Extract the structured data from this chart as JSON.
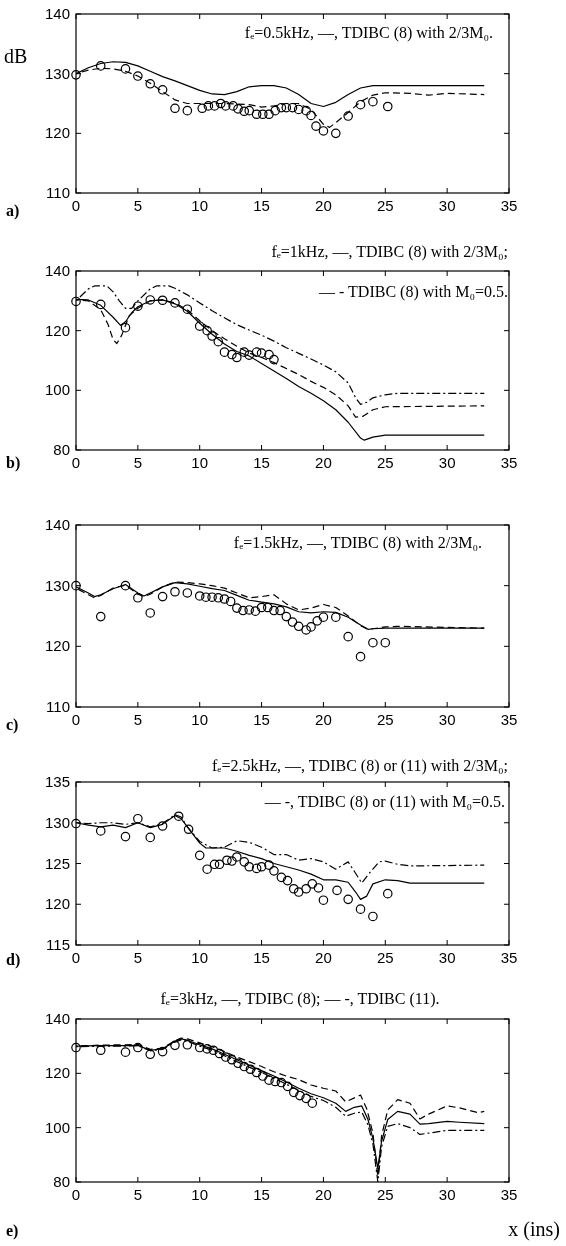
{
  "chart_data": [
    {
      "type": "line",
      "title": "fₑ=0.5kHz, —, TDIBC (8) with 2/3M₀.",
      "ylabel": "dB",
      "annotations": [
        "a)"
      ],
      "xlim": [
        0,
        35
      ],
      "xticks": [
        0,
        5,
        10,
        15,
        20,
        25,
        30,
        35
      ],
      "ylim": [
        110,
        140
      ],
      "yticks": [
        110,
        120,
        130,
        140
      ],
      "series": [
        {
          "type": "line",
          "line_style": "solid",
          "color": "#000000",
          "x": [
            0,
            1,
            2,
            3,
            4,
            5,
            6,
            7,
            8,
            9,
            10,
            11,
            12,
            13,
            14,
            15,
            16,
            17,
            18,
            19,
            20,
            21,
            22,
            23,
            24,
            25,
            33
          ],
          "values": [
            130,
            131,
            131.7,
            132,
            131.9,
            131.3,
            130.4,
            129.5,
            128.8,
            128,
            127.2,
            126.6,
            126.5,
            127,
            127.8,
            128,
            128,
            127.6,
            126.5,
            125,
            124.5,
            125.2,
            126.5,
            127.6,
            128,
            128,
            128
          ]
        },
        {
          "type": "line",
          "line_style": "dashed",
          "color": "#000000",
          "x": [
            0,
            1,
            2,
            3,
            4,
            5,
            6,
            7,
            8,
            9,
            10,
            12,
            14,
            15,
            16,
            17,
            18,
            19,
            20,
            20.5,
            21,
            22,
            23,
            24,
            25,
            27,
            28.5,
            30,
            33
          ],
          "values": [
            130,
            130.6,
            130.9,
            130.8,
            130.4,
            129.6,
            128.4,
            127,
            125.6,
            125,
            125,
            125,
            124.8,
            124.4,
            124.6,
            125,
            125,
            124,
            121.5,
            121,
            121.8,
            123.5,
            125.3,
            126.4,
            126.8,
            126.7,
            126.4,
            126.7,
            126.5
          ]
        },
        {
          "type": "scatter",
          "marker": "circle",
          "color": "#000000",
          "x": [
            0,
            2,
            4,
            5,
            6,
            7,
            8,
            9,
            10.2,
            10.7,
            11.2,
            11.7,
            12.1,
            12.7,
            13.1,
            13.6,
            14,
            14.6,
            15.1,
            15.6,
            16.1,
            16.6,
            17,
            17.5,
            18,
            18.6,
            19,
            19.4,
            20,
            21,
            22,
            23,
            24,
            25.2
          ],
          "values": [
            129.8,
            131.3,
            130.8,
            129.6,
            128.3,
            127.3,
            124.2,
            123.8,
            124.2,
            124.6,
            124.6,
            125,
            124.6,
            124.6,
            124.1,
            123.7,
            123.8,
            123.2,
            123.2,
            123.2,
            123.8,
            124.3,
            124.3,
            124.3,
            124,
            123.8,
            123,
            121.2,
            120.4,
            120,
            122.9,
            124.8,
            125.3,
            124.5
          ]
        }
      ]
    },
    {
      "type": "line",
      "title": "fₑ=1kHz, —, TDIBC (8) with 2/3M₀;",
      "annotations": [
        "— - TDIBC (8) with M₀=0.5.",
        "b)"
      ],
      "xlim": [
        0,
        35
      ],
      "xticks": [
        0,
        5,
        10,
        15,
        20,
        25,
        30,
        35
      ],
      "ylim": [
        80,
        140
      ],
      "yticks": [
        80,
        100,
        120,
        140
      ],
      "series": [
        {
          "type": "line",
          "line_style": "solid",
          "color": "#000000",
          "x": [
            0,
            1,
            2,
            3,
            3.6,
            4,
            4.5,
            5,
            6,
            7,
            8,
            9,
            10,
            11,
            12,
            13,
            14,
            15,
            16,
            17,
            18,
            19,
            20,
            21,
            22,
            23,
            23.3,
            24,
            25,
            33
          ],
          "values": [
            130.5,
            130.3,
            128.5,
            124.5,
            121.8,
            123,
            126,
            128,
            130,
            130.3,
            129,
            126.5,
            122.5,
            118.8,
            115.5,
            113,
            111.5,
            109,
            106.5,
            104,
            101.3,
            99,
            96.5,
            93.5,
            89.3,
            84,
            83.3,
            84.3,
            85,
            85
          ]
        },
        {
          "type": "line",
          "line_style": "dashed",
          "color": "#000000",
          "x": [
            0,
            1,
            2,
            2.6,
            3,
            3.3,
            3.7,
            4.3,
            5,
            6,
            7,
            8,
            9,
            10,
            11,
            12,
            13,
            14,
            15,
            16,
            17,
            18,
            19,
            20,
            21,
            22,
            22.6,
            23.2,
            24,
            25,
            33
          ],
          "values": [
            130.3,
            130,
            127,
            122,
            117,
            115.7,
            118.5,
            125,
            127.5,
            130,
            130.3,
            129.3,
            127,
            123.3,
            120,
            117.3,
            114.8,
            112.5,
            111,
            109.3,
            107.3,
            105.3,
            103,
            101,
            98.5,
            94.8,
            91,
            91.3,
            93.5,
            94.5,
            94.8
          ]
        },
        {
          "type": "line",
          "line_style": "dashdot",
          "color": "#000000",
          "x": [
            0,
            1,
            1.5,
            2.5,
            3,
            3.5,
            4,
            4.5,
            5,
            6,
            6.5,
            7.5,
            8,
            9,
            10,
            11,
            12,
            13,
            14,
            15,
            16,
            17,
            18,
            19,
            20,
            21,
            22,
            22.6,
            23,
            23.5,
            24,
            25,
            26,
            33
          ],
          "values": [
            130,
            134,
            135,
            135,
            133,
            130,
            127.5,
            127.5,
            130,
            134,
            135,
            135,
            134.2,
            132,
            129.3,
            126.7,
            124.3,
            122,
            120.2,
            118.5,
            116.5,
            114.3,
            112.4,
            110.5,
            108.5,
            106.2,
            102.5,
            97.5,
            95.3,
            96,
            97.5,
            98.5,
            99,
            99
          ]
        },
        {
          "type": "scatter",
          "marker": "circle",
          "color": "#000000",
          "x": [
            0,
            2,
            4,
            5,
            6,
            7,
            8,
            9,
            10,
            10.6,
            11,
            11.5,
            12,
            12.6,
            13,
            13.6,
            14,
            14.6,
            15,
            15.6,
            16
          ],
          "values": [
            129.8,
            128.8,
            121,
            128.2,
            130.3,
            130.2,
            129.3,
            127.2,
            121.5,
            120,
            118.2,
            116.3,
            112.8,
            112,
            111,
            112.8,
            111.8,
            112.8,
            112.5,
            112,
            110.3
          ]
        }
      ]
    },
    {
      "type": "line",
      "title": "fₑ=1.5kHz, —, TDIBC (8) with 2/3M₀.",
      "annotations": [
        "c)"
      ],
      "xlim": [
        0,
        35
      ],
      "xticks": [
        0,
        5,
        10,
        15,
        20,
        25,
        30,
        35
      ],
      "ylim": [
        110,
        140
      ],
      "yticks": [
        110,
        120,
        130,
        140
      ],
      "series": [
        {
          "type": "line",
          "line_style": "solid",
          "color": "#000000",
          "x": [
            0,
            1,
            1.5,
            2,
            3,
            4,
            5,
            5.5,
            6,
            7,
            8,
            9,
            10,
            11,
            12,
            13,
            14,
            15,
            16,
            17,
            18,
            19,
            20,
            21,
            22,
            23,
            23.6,
            24,
            25,
            33
          ],
          "values": [
            129.8,
            128.8,
            128.2,
            128.5,
            129.5,
            130.2,
            128.8,
            128.3,
            128.8,
            129.8,
            130.5,
            130.3,
            129.9,
            129.5,
            129.2,
            128.4,
            127.6,
            127.3,
            127,
            126.5,
            125.7,
            125.5,
            125.7,
            125.6,
            124.8,
            123.5,
            122.8,
            122.9,
            123,
            123
          ]
        },
        {
          "type": "line",
          "line_style": "dashed",
          "color": "#000000",
          "x": [
            0,
            1,
            1.5,
            2,
            3,
            4,
            5,
            5.5,
            6,
            7,
            8,
            9,
            10,
            11,
            12,
            13,
            14,
            15,
            16,
            17,
            18,
            19,
            20,
            21,
            22,
            23,
            23.6,
            24,
            25,
            26,
            33
          ],
          "values": [
            129.6,
            128.5,
            128,
            128.4,
            129.6,
            130.1,
            128.6,
            128.2,
            128.6,
            129.8,
            130.6,
            130.5,
            130.3,
            130,
            129.6,
            128.8,
            128,
            128.2,
            128.5,
            127,
            126,
            126.3,
            126.9,
            126.4,
            125,
            123.4,
            122.8,
            122.9,
            123.2,
            123.3,
            123
          ]
        },
        {
          "type": "scatter",
          "marker": "circle",
          "color": "#000000",
          "x": [
            0,
            2,
            4,
            5,
            6,
            7,
            8,
            9,
            10,
            10.5,
            11,
            11.5,
            12,
            12.5,
            13,
            13.5,
            14,
            14.5,
            15,
            15.5,
            16,
            16.5,
            17,
            17.5,
            18,
            18.6,
            19,
            19.5,
            20,
            21,
            22,
            23,
            24,
            25
          ],
          "values": [
            130,
            124.9,
            130,
            128,
            125.5,
            128.2,
            129,
            128.8,
            128.3,
            128.1,
            128.1,
            128,
            127.8,
            127.4,
            126.3,
            125.9,
            126,
            125.8,
            126.4,
            126.4,
            125.9,
            125.9,
            124.9,
            124,
            123.3,
            122.7,
            123.2,
            124.2,
            124.8,
            124.8,
            121.6,
            118.3,
            120.6,
            120.6
          ]
        }
      ]
    },
    {
      "type": "line",
      "title": "fₑ=2.5kHz, —, TDIBC (8) or (11) with 2/3M₀;",
      "annotations": [
        "— -, TDIBC (8) or (11) with M₀=0.5.",
        "d)"
      ],
      "xlim": [
        0,
        35
      ],
      "xticks": [
        0,
        5,
        10,
        15,
        20,
        25,
        30,
        35
      ],
      "ylim": [
        115,
        135
      ],
      "yticks": [
        115,
        120,
        125,
        130,
        135
      ],
      "series": [
        {
          "type": "line",
          "line_style": "solid",
          "color": "#000000",
          "x": [
            0,
            1,
            2,
            3,
            4,
            5,
            6,
            7,
            8,
            8.5,
            9,
            10,
            10.5,
            12,
            13,
            14,
            15,
            16,
            17,
            18,
            19,
            20,
            21,
            22,
            22.6,
            23,
            23.5,
            24,
            25,
            26,
            27,
            33
          ],
          "values": [
            130,
            129.7,
            129.5,
            129.7,
            129.4,
            130,
            129.4,
            129.8,
            130.9,
            130.5,
            129.5,
            127.5,
            126.9,
            126.9,
            126.5,
            126,
            125.6,
            125,
            124.6,
            124.2,
            123.7,
            123,
            123,
            122.7,
            121.5,
            120.6,
            121,
            122.5,
            123,
            122.9,
            122.6,
            122.6
          ]
        },
        {
          "type": "line",
          "line_style": "dashdot",
          "color": "#000000",
          "x": [
            0,
            1,
            2,
            3,
            4,
            5,
            6,
            7,
            8,
            8.5,
            9,
            10,
            11,
            12,
            13,
            14,
            15,
            16,
            17,
            18,
            19,
            20,
            21,
            22,
            22.6,
            23.1,
            23.6,
            24.5,
            25,
            26,
            27,
            33
          ],
          "values": [
            130,
            129.9,
            130,
            130,
            129.8,
            130,
            129.5,
            129.9,
            131,
            130.7,
            129.5,
            127.7,
            126.9,
            127,
            127.8,
            127.6,
            127,
            126.1,
            126.1,
            125.4,
            125.6,
            125.2,
            124.3,
            125.2,
            123.8,
            122.6,
            123.6,
            125.2,
            125.3,
            124.9,
            124.7,
            124.8
          ]
        },
        {
          "type": "scatter",
          "marker": "circle",
          "color": "#000000",
          "x": [
            0,
            2,
            4,
            5,
            6,
            7,
            8.3,
            9.1,
            10,
            10.6,
            11.2,
            11.6,
            12.2,
            12.6,
            13,
            13.6,
            14,
            14.6,
            15,
            15.6,
            16,
            16.6,
            17.1,
            17.6,
            18,
            18.6,
            19.1,
            19.6,
            20,
            21.1,
            22,
            23,
            24,
            25.2
          ],
          "values": [
            129.9,
            129,
            128.3,
            130.5,
            128.2,
            129.6,
            130.8,
            129.2,
            126,
            124.3,
            124.9,
            124.9,
            125.4,
            125.3,
            125.8,
            125.2,
            124.6,
            124.4,
            124.6,
            124.8,
            124.1,
            123.3,
            122.9,
            121.9,
            121.5,
            121.9,
            122.5,
            122,
            120.5,
            121.7,
            120.6,
            119.4,
            118.5,
            121.3
          ]
        }
      ]
    },
    {
      "type": "line",
      "title": "fₑ=3kHz, —, TDIBC (8); — -, TDIBC (11).",
      "xlabel": "x (ins)",
      "annotations": [
        "e)"
      ],
      "xlim": [
        0,
        35
      ],
      "xticks": [
        0,
        5,
        10,
        15,
        20,
        25,
        30,
        35
      ],
      "ylim": [
        80,
        140
      ],
      "yticks": [
        80,
        100,
        120,
        140
      ],
      "series": [
        {
          "type": "line",
          "line_style": "solid",
          "color": "#000000",
          "x": [
            0,
            2,
            4,
            5,
            6,
            7,
            8,
            8.5,
            9,
            10,
            11,
            12,
            13,
            14,
            15,
            16,
            17,
            18,
            19,
            20,
            21,
            21.8,
            22.5,
            23.1,
            23.6,
            24,
            24.4,
            24.7,
            25.2,
            26,
            27,
            27.8,
            28.5,
            30,
            31,
            33
          ],
          "values": [
            130,
            130.2,
            130.2,
            130.3,
            128.5,
            129,
            131.8,
            132.7,
            132.2,
            130.5,
            129,
            127,
            125,
            123,
            121,
            119,
            116.8,
            114.5,
            112.5,
            111,
            109,
            106,
            107.5,
            108,
            103,
            96,
            85,
            95,
            103,
            106,
            105,
            101.3,
            101.5,
            102.3,
            102,
            101.5
          ]
        },
        {
          "type": "line",
          "line_style": "dashed",
          "color": "#000000",
          "x": [
            0,
            2,
            4,
            5,
            6,
            7,
            8,
            8.5,
            9,
            10,
            11,
            12,
            13,
            14,
            15,
            16,
            17,
            18,
            19,
            20,
            21,
            21.8,
            23,
            23.5,
            24,
            24.4,
            24.7,
            25.2,
            26,
            27,
            27.8,
            28.5,
            30,
            31,
            32.5,
            33
          ],
          "values": [
            130,
            130.4,
            130.5,
            130.7,
            128.8,
            129.3,
            132,
            133,
            132.7,
            131.2,
            129.8,
            128,
            126,
            124.3,
            122.5,
            120.6,
            119,
            117.7,
            115.7,
            114.5,
            113.5,
            109.5,
            112,
            107,
            98,
            82,
            97,
            106.5,
            110.3,
            109,
            103.2,
            105,
            108,
            107.3,
            105.5,
            106
          ]
        },
        {
          "type": "line",
          "line_style": "dashdot",
          "color": "#000000",
          "x": [
            0,
            2,
            4,
            5,
            6,
            7,
            8,
            8.5,
            9,
            10,
            11,
            12,
            13,
            14,
            15,
            16,
            17,
            18,
            19,
            20,
            21,
            21.8,
            22.5,
            23.1,
            23.6,
            24,
            24.4,
            24.7,
            25.2,
            26,
            27,
            27.8,
            28.5,
            30,
            31,
            33
          ],
          "values": [
            129.8,
            130,
            130,
            130.2,
            128.3,
            128.8,
            131.5,
            132.3,
            131.8,
            130,
            128.5,
            126.5,
            124.3,
            122.3,
            120.3,
            118.2,
            116,
            113.7,
            111.5,
            110,
            107.5,
            104.2,
            105.3,
            105.8,
            101,
            94,
            80,
            93,
            100.5,
            101.5,
            100,
            97.5,
            98,
            99,
            99,
            99
          ]
        },
        {
          "type": "scatter",
          "marker": "circle",
          "color": "#000000",
          "x": [
            0,
            2,
            4,
            5,
            6,
            7,
            8,
            9,
            10,
            10.6,
            11.1,
            11.6,
            12.1,
            12.6,
            13.1,
            13.6,
            14.1,
            14.6,
            15.1,
            15.6,
            16.1,
            16.6,
            17.1,
            17.6,
            18.1,
            18.6,
            19.1
          ],
          "values": [
            129.5,
            128.5,
            127.8,
            129.5,
            127,
            128,
            130.3,
            130.5,
            129.5,
            129,
            128.5,
            127.3,
            126,
            125,
            123.7,
            122.5,
            121.5,
            120.3,
            119,
            117.5,
            117,
            116.6,
            115.2,
            113,
            111.8,
            110.8,
            109
          ]
        }
      ]
    }
  ]
}
